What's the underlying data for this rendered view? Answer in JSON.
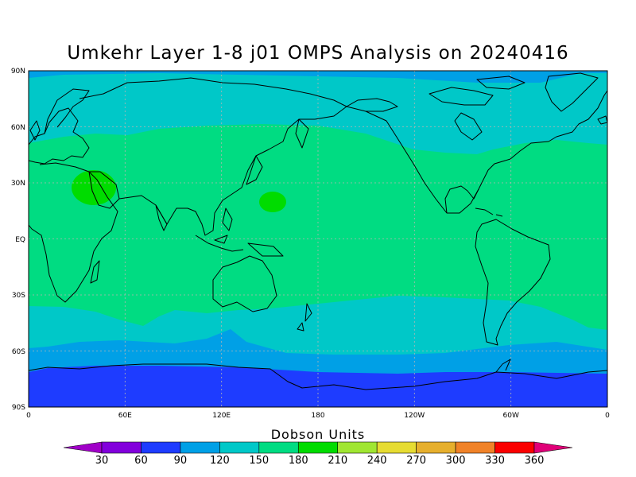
{
  "title": "Umkehr Layer 1-8 j01 OMPS Analysis on 20240416",
  "lat_ticks": [
    "90N",
    "60N",
    "30N",
    "EQ",
    "30S",
    "60S",
    "90S"
  ],
  "lon_ticks": [
    "0",
    "60E",
    "120E",
    "180",
    "120W",
    "60W",
    "0"
  ],
  "colorbar": {
    "title": "Dobson Units",
    "levels": [
      "30",
      "60",
      "90",
      "120",
      "150",
      "180",
      "210",
      "240",
      "270",
      "300",
      "330",
      "360"
    ],
    "colors": [
      "#a000c8",
      "#8200dc",
      "#1e3cff",
      "#00a0e6",
      "#00c8c8",
      "#00dc82",
      "#00dc00",
      "#a0e632",
      "#e6dc32",
      "#e6af2d",
      "#f08228",
      "#fa0000",
      "#e00078"
    ]
  },
  "map_colors": {
    "band_90": "#1e3cff",
    "band_120": "#00a0e6",
    "band_150": "#00c8c8",
    "band_180": "#00dc82",
    "band_210": "#00dc00",
    "coastline": "#000000",
    "grid": "#b4b4b4"
  }
}
